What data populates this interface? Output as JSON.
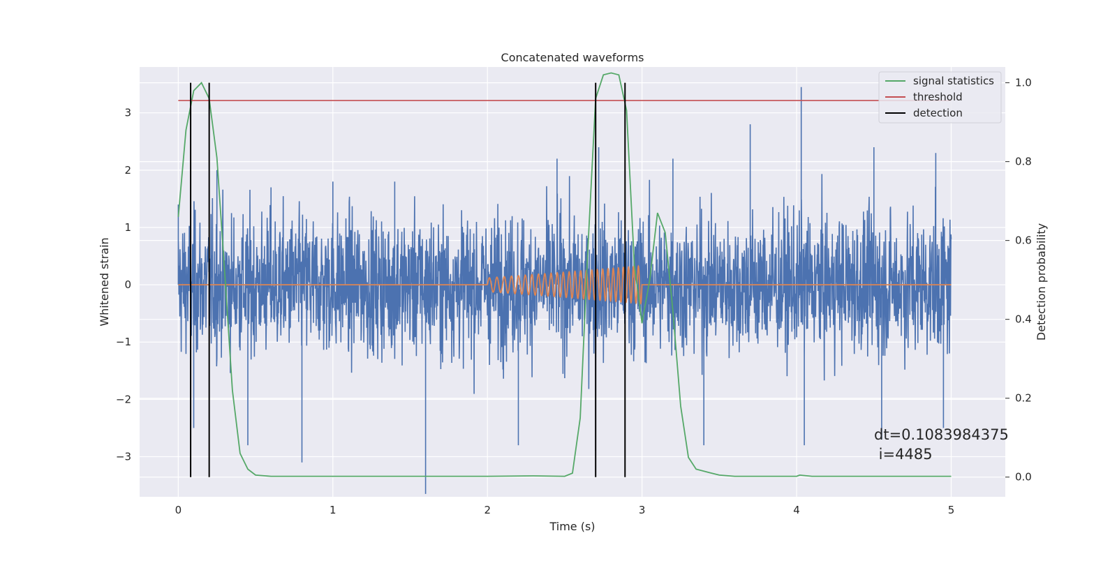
{
  "chart_data": {
    "type": "line",
    "title": "Concatenated waveforms",
    "xlabel": "Time (s)",
    "ylabel": "Whitened strain",
    "ylabel_right": "Detection probability",
    "xlim": [
      -0.25,
      5.35
    ],
    "ylim": [
      -3.7,
      3.8
    ],
    "ylim_right": [
      -0.05,
      1.04
    ],
    "x_ticks": [
      0,
      1,
      2,
      3,
      4,
      5
    ],
    "y_ticks": [
      -3,
      -2,
      -1,
      0,
      1,
      2,
      3
    ],
    "y_ticks_right": [
      "0.0",
      "0.2",
      "0.4",
      "0.6",
      "0.8",
      "1.0"
    ],
    "grid": true,
    "legend_position": "top-right",
    "colors": {
      "strain": "#4c72b0",
      "template": "#dd8452",
      "signal_statistics": "#55a868",
      "threshold": "#c44e52",
      "detection": "#000000",
      "background": "#eaeaf2",
      "grid": "#ffffff"
    },
    "series": [
      {
        "axis": "left",
        "description": "whitened strain (noise)",
        "x_range": [
          0,
          5
        ],
        "peaks": [
          [
            0.0,
            1.4
          ],
          [
            0.25,
            2.0
          ],
          [
            0.6,
            1.7
          ],
          [
            1.0,
            1.8
          ],
          [
            1.4,
            1.8
          ],
          [
            2.45,
            2.2
          ],
          [
            2.72,
            2.4
          ],
          [
            3.2,
            2.2
          ],
          [
            3.7,
            2.8
          ],
          [
            4.03,
            3.45
          ],
          [
            4.5,
            2.4
          ],
          [
            4.9,
            2.3
          ]
        ],
        "troughs": [
          [
            0.1,
            -2.5
          ],
          [
            0.45,
            -2.8
          ],
          [
            0.8,
            -3.1
          ],
          [
            1.6,
            -3.65
          ],
          [
            2.2,
            -2.8
          ],
          [
            2.7,
            -2.9
          ],
          [
            3.4,
            -2.8
          ],
          [
            4.05,
            -2.8
          ],
          [
            4.55,
            -2.7
          ],
          [
            4.95,
            -2.5
          ]
        ]
      },
      {
        "axis": "left",
        "description": "injected chirp waveform",
        "x": [
          0,
          2.0,
          2.5,
          3.0,
          5
        ],
        "amplitude": [
          0,
          0.12,
          0.22,
          0.33,
          0
        ],
        "chirp_start": 2.0,
        "chirp_end": 3.0
      },
      {
        "name": "signal statistics",
        "axis": "right",
        "x": [
          0.0,
          0.05,
          0.1,
          0.15,
          0.2,
          0.25,
          0.3,
          0.35,
          0.4,
          0.45,
          0.5,
          0.6,
          1.0,
          1.5,
          2.0,
          2.3,
          2.5,
          2.55,
          2.6,
          2.65,
          2.7,
          2.75,
          2.8,
          2.85,
          2.9,
          2.95,
          3.0,
          3.05,
          3.1,
          3.15,
          3.2,
          3.25,
          3.3,
          3.35,
          3.4,
          3.5,
          3.6,
          4.0,
          4.02,
          4.1,
          5.0
        ],
        "y": [
          0.66,
          0.88,
          0.98,
          1.0,
          0.96,
          0.81,
          0.52,
          0.22,
          0.06,
          0.02,
          0.005,
          0.002,
          0.002,
          0.002,
          0.002,
          0.003,
          0.002,
          0.01,
          0.15,
          0.58,
          0.96,
          1.02,
          1.025,
          1.02,
          0.93,
          0.54,
          0.39,
          0.5,
          0.67,
          0.62,
          0.42,
          0.18,
          0.05,
          0.02,
          0.015,
          0.005,
          0.002,
          0.002,
          0.005,
          0.002,
          0.002
        ]
      },
      {
        "name": "threshold",
        "axis": "right",
        "x": [
          0,
          5
        ],
        "y": [
          0.955,
          0.955
        ]
      },
      {
        "name": "detection",
        "axis": "right",
        "x_positions": [
          0.08,
          0.2,
          2.7,
          2.89
        ],
        "y_range": [
          0.0,
          1.0
        ]
      }
    ],
    "annotation": {
      "line1": "dt=0.1083984375",
      "line2": " i=4485"
    }
  }
}
